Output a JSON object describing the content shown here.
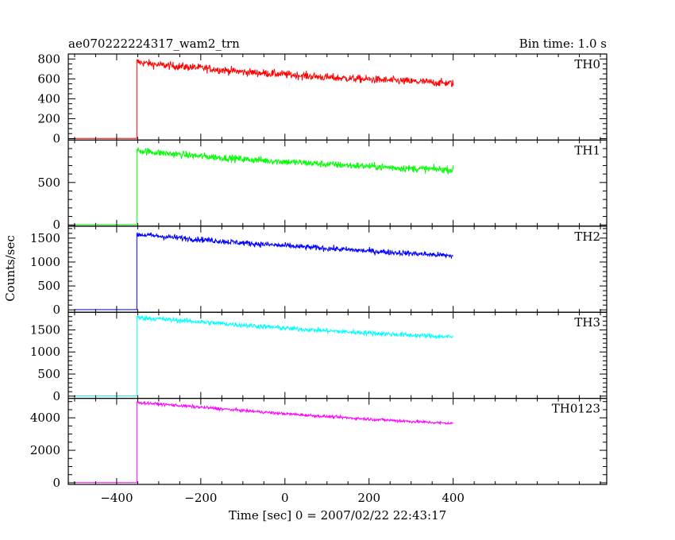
{
  "chart_data": {
    "type": "line",
    "title_left": "ae070222224317_wam2_trn",
    "title_right": "Bin time: 1.0 s",
    "xlabel": "Time [sec] 0 = 2007/02/22 22:43:17",
    "ylabel": "Counts/sec",
    "xlim": [
      -515,
      765
    ],
    "x_ticks": [
      -400,
      -200,
      0,
      200,
      400
    ],
    "x_tick_labels": [
      "−400",
      "−200",
      "0",
      "200",
      "400"
    ],
    "x_minor_step": 50,
    "grid": false,
    "legend": "none",
    "burst_onset": -352,
    "x_end": 400,
    "panels": [
      {
        "name": "TH0",
        "color": "#ff0000",
        "ylim": [
          -15,
          850
        ],
        "y_ticks": [
          0,
          200,
          400,
          600,
          800
        ],
        "y_tick_labels": [
          "0",
          "200",
          "400",
          "600",
          "800"
        ],
        "y_minor_step": 50,
        "pre_level": 2,
        "profile": [
          [
            -352,
            770
          ],
          [
            -300,
            740
          ],
          [
            -200,
            710
          ],
          [
            -100,
            670
          ],
          [
            0,
            645
          ],
          [
            100,
            615
          ],
          [
            200,
            595
          ],
          [
            300,
            575
          ],
          [
            400,
            555
          ]
        ],
        "noise": 28
      },
      {
        "name": "TH1",
        "color": "#00ff00",
        "ylim": [
          -15,
          1000
        ],
        "y_ticks": [
          0,
          500
        ],
        "y_tick_labels": [
          "0",
          "500"
        ],
        "y_minor_step": 100,
        "pre_level": 5,
        "profile": [
          [
            -352,
            880
          ],
          [
            -300,
            850
          ],
          [
            -200,
            810
          ],
          [
            -100,
            775
          ],
          [
            0,
            745
          ],
          [
            100,
            715
          ],
          [
            200,
            690
          ],
          [
            300,
            665
          ],
          [
            400,
            650
          ]
        ],
        "noise": 30
      },
      {
        "name": "TH2",
        "color": "#0000ff",
        "ylim": [
          -50,
          1750
        ],
        "y_ticks": [
          0,
          500,
          1000,
          1500
        ],
        "y_tick_labels": [
          "0",
          "500",
          "1000",
          "1500"
        ],
        "y_minor_step": 100,
        "pre_level": 5,
        "profile": [
          [
            -352,
            1580
          ],
          [
            -300,
            1540
          ],
          [
            -200,
            1470
          ],
          [
            -100,
            1400
          ],
          [
            0,
            1340
          ],
          [
            100,
            1285
          ],
          [
            200,
            1230
          ],
          [
            300,
            1180
          ],
          [
            400,
            1130
          ]
        ],
        "noise": 42
      },
      {
        "name": "TH3",
        "color": "#00ffff",
        "ylim": [
          -50,
          1900
        ],
        "y_ticks": [
          0,
          500,
          1000,
          1500
        ],
        "y_tick_labels": [
          "0",
          "500",
          "1000",
          "1500"
        ],
        "y_minor_step": 100,
        "pre_level": 5,
        "profile": [
          [
            -352,
            1780
          ],
          [
            -300,
            1750
          ],
          [
            -200,
            1680
          ],
          [
            -100,
            1610
          ],
          [
            0,
            1540
          ],
          [
            100,
            1480
          ],
          [
            200,
            1430
          ],
          [
            300,
            1380
          ],
          [
            400,
            1340
          ]
        ],
        "noise": 40
      },
      {
        "name": "TH0123",
        "color": "#ff00ff",
        "ylim": [
          -100,
          5200
        ],
        "y_ticks": [
          0,
          2000,
          4000
        ],
        "y_tick_labels": [
          "0",
          "2000",
          "4000"
        ],
        "y_minor_step": 500,
        "pre_level": 10,
        "profile": [
          [
            -352,
            4950
          ],
          [
            -300,
            4850
          ],
          [
            -200,
            4650
          ],
          [
            -100,
            4450
          ],
          [
            0,
            4250
          ],
          [
            100,
            4080
          ],
          [
            200,
            3920
          ],
          [
            300,
            3780
          ],
          [
            400,
            3650
          ]
        ],
        "noise": 65
      }
    ]
  }
}
